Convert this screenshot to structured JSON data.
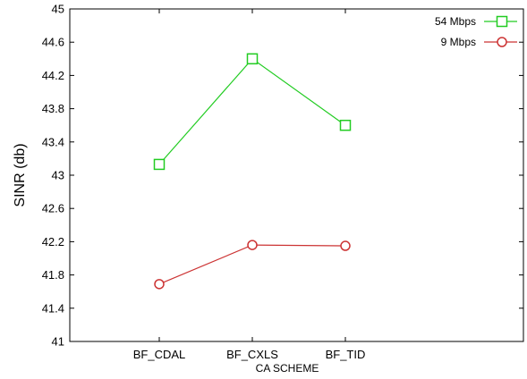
{
  "chart_data": {
    "type": "line",
    "categories": [
      "BF_CDAL",
      "BF_CXLS",
      "BF_TID"
    ],
    "series": [
      {
        "name": "54 Mbps",
        "values": [
          43.13,
          44.4,
          43.6
        ],
        "color": "#22cc22",
        "marker": "square"
      },
      {
        "name": "9 Mbps",
        "values": [
          41.69,
          42.16,
          42.15
        ],
        "color": "#cc3333",
        "marker": "circle"
      }
    ],
    "xlabel": "CA SCHEME",
    "ylabel": "SINR (db)",
    "ylim": [
      41,
      45
    ],
    "yticks": [
      "41",
      "41.4",
      "41.8",
      "42.2",
      "42.6",
      "43",
      "43.4",
      "43.8",
      "44.2",
      "44.6",
      "45"
    ],
    "grid": false,
    "legend_position": "top-right"
  }
}
